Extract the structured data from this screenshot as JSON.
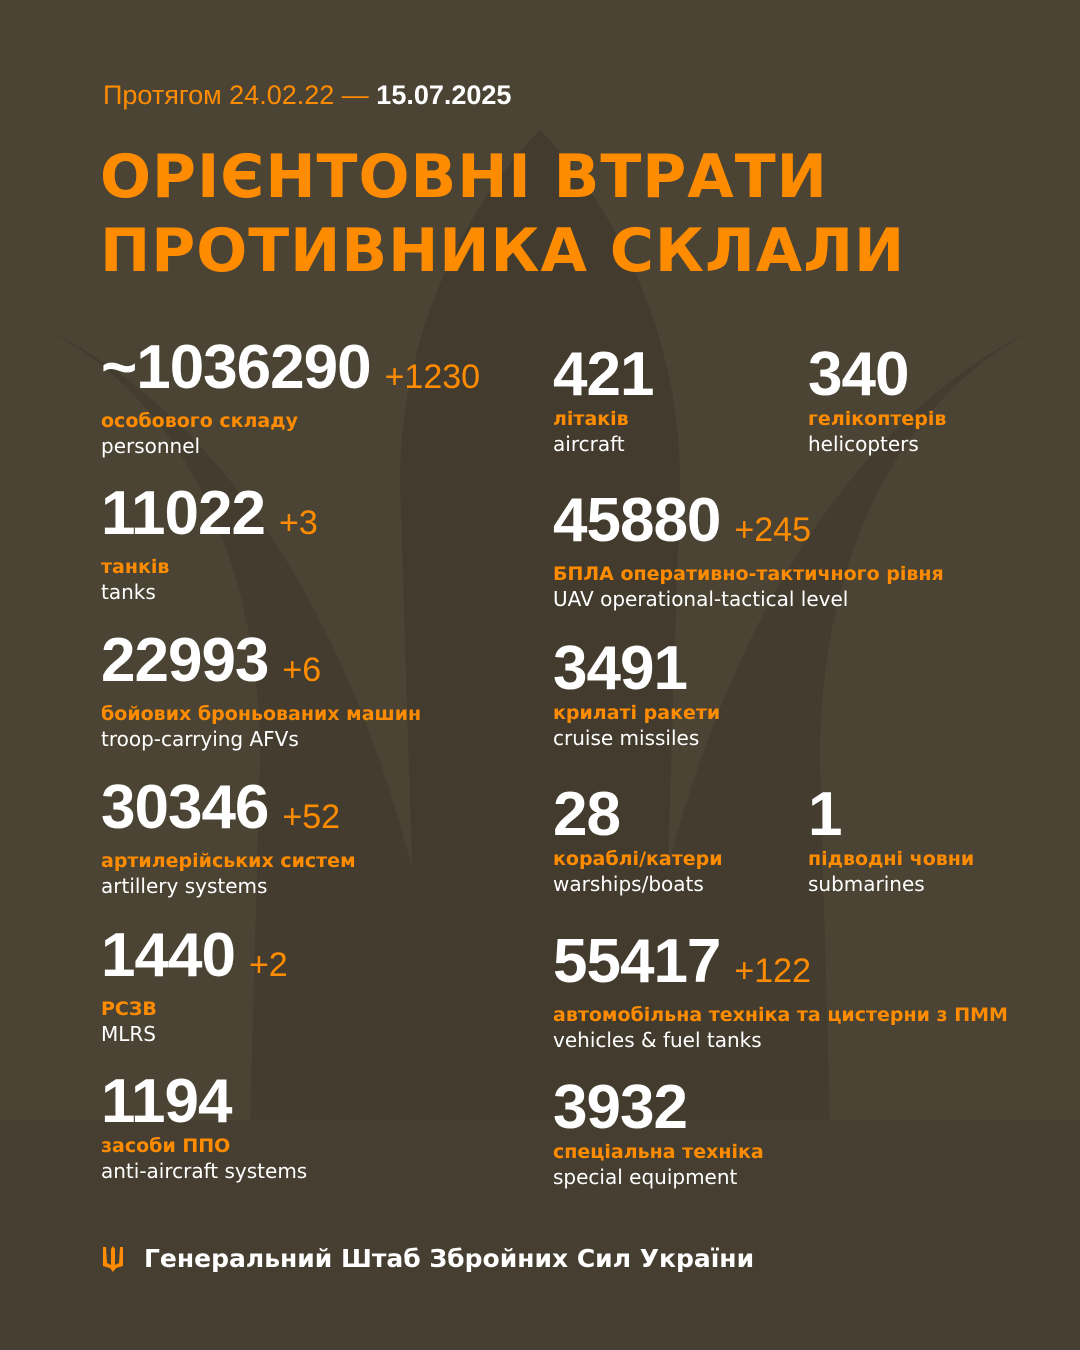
{
  "header": {
    "period_prefix": "Протягом 24.02.22 —",
    "period_end": "15.07.2025",
    "title_line1": "ОРІЄНТОВНІ ВТРАТИ",
    "title_line2": "ПРОТИВНИКА СКЛАЛИ"
  },
  "colors": {
    "accent": "#ff8c00",
    "background": "#4b4434",
    "text": "#ffffff"
  },
  "left": [
    {
      "value": "~1036290",
      "delta": "+1230",
      "uk": "особового складу",
      "en": "personnel"
    },
    {
      "value": "11022",
      "delta": "+3",
      "uk": "танків",
      "en": "tanks"
    },
    {
      "value": "22993",
      "delta": "+6",
      "uk": "бойових броньованих машин",
      "en": "troop-carrying AFVs"
    },
    {
      "value": "30346",
      "delta": "+52",
      "uk": "артилерійських систем",
      "en": "artillery systems"
    },
    {
      "value": "1440",
      "delta": "+2",
      "uk": "РСЗВ",
      "en": "MLRS"
    },
    {
      "value": "1194",
      "delta": "",
      "uk": "засоби ППО",
      "en": "anti-aircraft systems"
    }
  ],
  "right": [
    {
      "value": "421",
      "delta": "",
      "uk": "літаків",
      "en": "aircraft"
    },
    {
      "value": "340",
      "delta": "",
      "uk": "гелікоптерів",
      "en": "helicopters"
    },
    {
      "value": "45880",
      "delta": "+245",
      "uk": "БПЛА оперативно-тактичного рівня",
      "en": "UAV operational-tactical level"
    },
    {
      "value": "3491",
      "delta": "",
      "uk": "крилаті ракети",
      "en": "cruise missiles"
    },
    {
      "value": "28",
      "delta": "",
      "uk": "кораблі/катери",
      "en": "warships/boats"
    },
    {
      "value": "1",
      "delta": "",
      "uk": "підводні човни",
      "en": "submarines"
    },
    {
      "value": "55417",
      "delta": "+122",
      "uk": "автомобільна техніка та цистерни з ПММ",
      "en": "vehicles & fuel tanks"
    },
    {
      "value": "3932",
      "delta": "",
      "uk": "спеціальна техніка",
      "en": "special equipment"
    }
  ],
  "footer": {
    "org": "Генеральний Штаб Збройних Сил України",
    "icon": "trident-icon"
  }
}
